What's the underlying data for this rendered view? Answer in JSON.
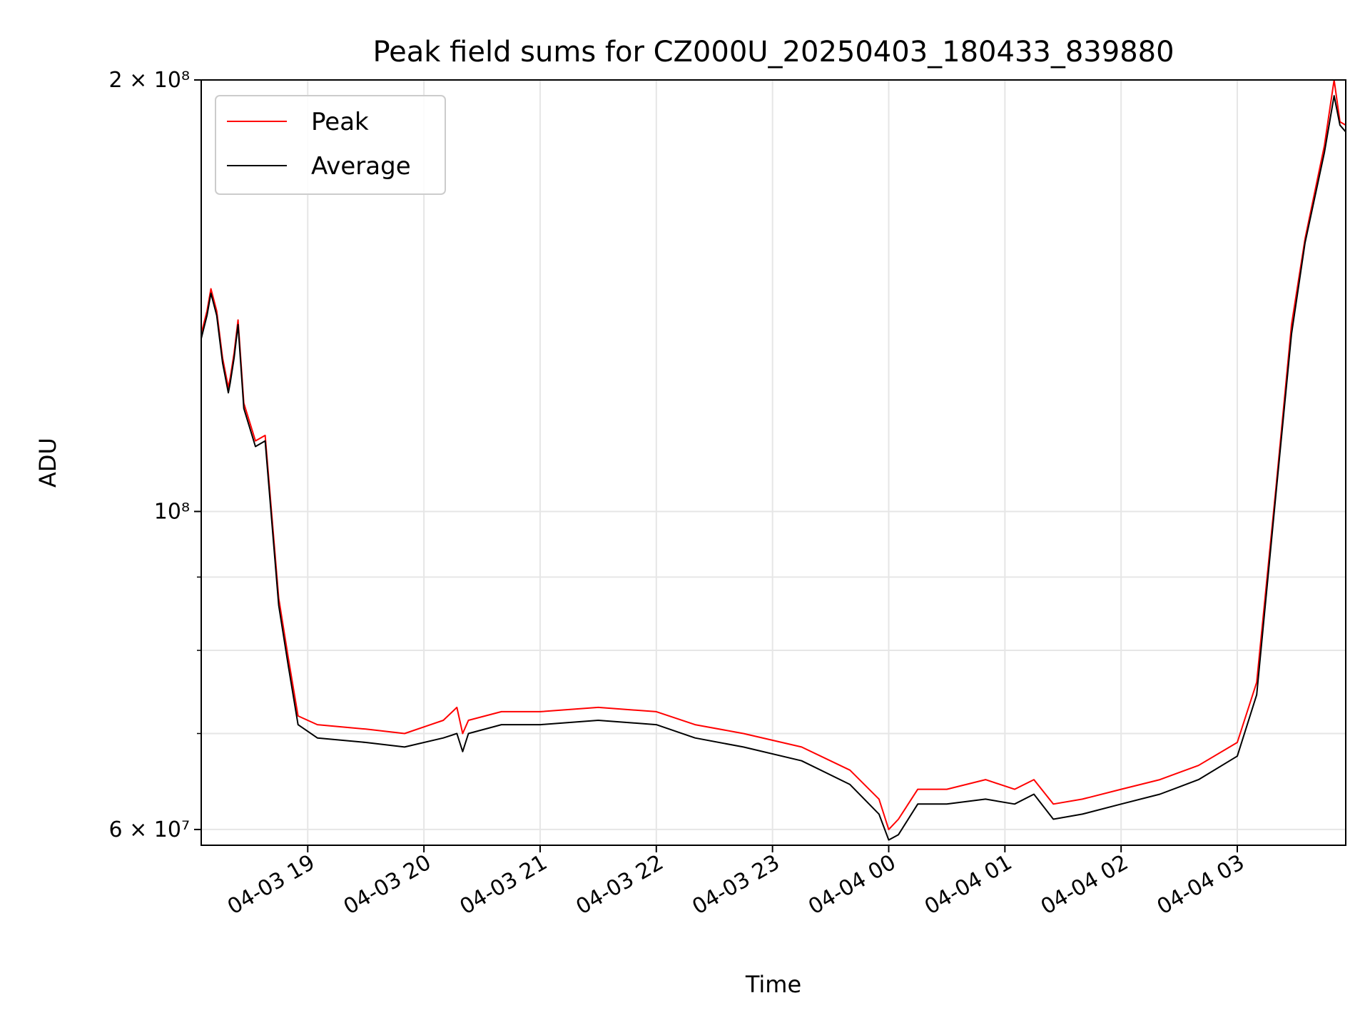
{
  "chart_data": {
    "type": "line",
    "title": "Peak field sums for CZ000U_20250403_180433_839880",
    "xlabel": "Time",
    "ylabel": "ADU",
    "x_scale": "time",
    "y_scale": "log",
    "xlim": [
      "2025-04-03 18:05",
      "2025-04-04 03:56"
    ],
    "ylim": [
      58500000,
      200000000
    ],
    "grid": true,
    "legend_position": "top-left",
    "x_ticks": [
      {
        "value": "2025-04-03 19:00",
        "label": "04-03 19"
      },
      {
        "value": "2025-04-03 20:00",
        "label": "04-03 20"
      },
      {
        "value": "2025-04-03 21:00",
        "label": "04-03 21"
      },
      {
        "value": "2025-04-03 22:00",
        "label": "04-03 22"
      },
      {
        "value": "2025-04-03 23:00",
        "label": "04-03 23"
      },
      {
        "value": "2025-04-04 00:00",
        "label": "04-04 00"
      },
      {
        "value": "2025-04-04 01:00",
        "label": "04-04 01"
      },
      {
        "value": "2025-04-04 02:00",
        "label": "04-04 02"
      },
      {
        "value": "2025-04-04 03:00",
        "label": "04-04 03"
      }
    ],
    "y_ticks": [
      {
        "value": 60000000,
        "label": "6 × 10⁷"
      },
      {
        "value": 100000000,
        "label": "10⁸"
      },
      {
        "value": 200000000,
        "label": "2 × 10⁸"
      }
    ],
    "y_minor_ticks": [
      70000000,
      80000000,
      90000000
    ],
    "series": [
      {
        "name": "Peak",
        "color": "#ff0000",
        "x": [
          "2025-04-03 18:05",
          "2025-04-03 18:08",
          "2025-04-03 18:10",
          "2025-04-03 18:13",
          "2025-04-03 18:16",
          "2025-04-03 18:19",
          "2025-04-03 18:20",
          "2025-04-03 18:22",
          "2025-04-03 18:24",
          "2025-04-03 18:27",
          "2025-04-03 18:33",
          "2025-04-03 18:38",
          "2025-04-03 18:45",
          "2025-04-03 18:50",
          "2025-04-03 18:55",
          "2025-04-03 19:05",
          "2025-04-03 19:30",
          "2025-04-03 19:50",
          "2025-04-03 20:10",
          "2025-04-03 20:17",
          "2025-04-03 20:20",
          "2025-04-03 20:23",
          "2025-04-03 20:40",
          "2025-04-03 21:00",
          "2025-04-03 21:30",
          "2025-04-03 22:00",
          "2025-04-03 22:20",
          "2025-04-03 22:45",
          "2025-04-03 23:15",
          "2025-04-03 23:40",
          "2025-04-03 23:55",
          "2025-04-04 00:00",
          "2025-04-04 00:05",
          "2025-04-04 00:15",
          "2025-04-04 00:30",
          "2025-04-04 00:50",
          "2025-04-04 01:05",
          "2025-04-04 01:15",
          "2025-04-04 01:25",
          "2025-04-04 01:40",
          "2025-04-04 02:00",
          "2025-04-04 02:20",
          "2025-04-04 02:40",
          "2025-04-04 03:00",
          "2025-04-04 03:10",
          "2025-04-04 03:20",
          "2025-04-04 03:28",
          "2025-04-04 03:35",
          "2025-04-04 03:45",
          "2025-04-04 03:50",
          "2025-04-04 03:53",
          "2025-04-04 03:56"
        ],
        "values": [
          133000000,
          138000000,
          143000000,
          138000000,
          128000000,
          122000000,
          124000000,
          129000000,
          136000000,
          119000000,
          112000000,
          113000000,
          87000000,
          79000000,
          72000000,
          71000000,
          70500000,
          70000000,
          71500000,
          73000000,
          70000000,
          71500000,
          72500000,
          72500000,
          73000000,
          72500000,
          71000000,
          70000000,
          68500000,
          66000000,
          63000000,
          60000000,
          61000000,
          64000000,
          64000000,
          65000000,
          64000000,
          65000000,
          62500000,
          63000000,
          64000000,
          65000000,
          66500000,
          69000000,
          76000000,
          104000000,
          135000000,
          155000000,
          180000000,
          200000000,
          187000000,
          186000000
        ]
      },
      {
        "name": "Average",
        "color": "#000000",
        "x": [
          "2025-04-03 18:05",
          "2025-04-03 18:08",
          "2025-04-03 18:10",
          "2025-04-03 18:13",
          "2025-04-03 18:16",
          "2025-04-03 18:19",
          "2025-04-03 18:20",
          "2025-04-03 18:22",
          "2025-04-03 18:24",
          "2025-04-03 18:27",
          "2025-04-03 18:33",
          "2025-04-03 18:38",
          "2025-04-03 18:45",
          "2025-04-03 18:50",
          "2025-04-03 18:55",
          "2025-04-03 19:05",
          "2025-04-03 19:30",
          "2025-04-03 19:50",
          "2025-04-03 20:10",
          "2025-04-03 20:17",
          "2025-04-03 20:20",
          "2025-04-03 20:23",
          "2025-04-03 20:40",
          "2025-04-03 21:00",
          "2025-04-03 21:30",
          "2025-04-03 22:00",
          "2025-04-03 22:20",
          "2025-04-03 22:45",
          "2025-04-03 23:15",
          "2025-04-03 23:40",
          "2025-04-03 23:55",
          "2025-04-04 00:00",
          "2025-04-04 00:05",
          "2025-04-04 00:15",
          "2025-04-04 00:30",
          "2025-04-04 00:50",
          "2025-04-04 01:05",
          "2025-04-04 01:15",
          "2025-04-04 01:25",
          "2025-04-04 01:40",
          "2025-04-04 02:00",
          "2025-04-04 02:20",
          "2025-04-04 02:40",
          "2025-04-04 03:00",
          "2025-04-04 03:10",
          "2025-04-04 03:20",
          "2025-04-04 03:28",
          "2025-04-04 03:35",
          "2025-04-04 03:45",
          "2025-04-04 03:50",
          "2025-04-04 03:53",
          "2025-04-04 03:56"
        ],
        "values": [
          132000000,
          137000000,
          142000000,
          137000000,
          127000000,
          121000000,
          123000000,
          128000000,
          135000000,
          118000000,
          111000000,
          112000000,
          86000000,
          78000000,
          71000000,
          69500000,
          69000000,
          68500000,
          69500000,
          70000000,
          68000000,
          70000000,
          71000000,
          71000000,
          71500000,
          71000000,
          69500000,
          68500000,
          67000000,
          64500000,
          61500000,
          59000000,
          59500000,
          62500000,
          62500000,
          63000000,
          62500000,
          63500000,
          61000000,
          61500000,
          62500000,
          63500000,
          65000000,
          67500000,
          74500000,
          103000000,
          133000000,
          154000000,
          178000000,
          195000000,
          186000000,
          184000000
        ]
      }
    ]
  }
}
